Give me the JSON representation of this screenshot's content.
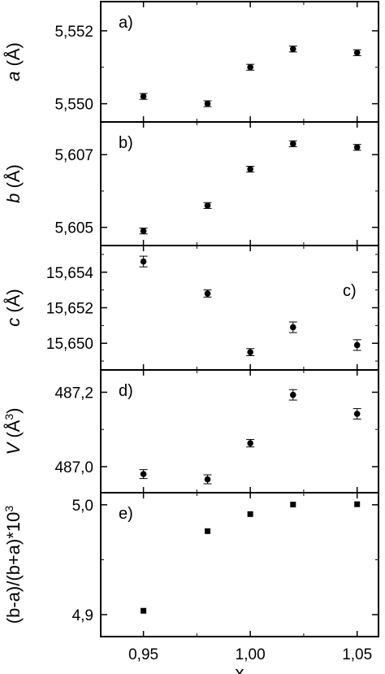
{
  "chart_data": [
    {
      "type": "scatter",
      "panel_label": "a)",
      "ylabel": "a (Å)",
      "ylabel_var": "a",
      "ylabel_unit": " (Å)",
      "xlim": [
        0.93,
        1.06
      ],
      "ylim": [
        5.5495,
        5.5528
      ],
      "yticks": [
        5.55,
        5.552
      ],
      "ytick_labels": [
        "5,550",
        "5,552"
      ],
      "marker": "circle",
      "points": [
        {
          "x": 0.95,
          "y": 5.5502,
          "err": 8e-05
        },
        {
          "x": 0.98,
          "y": 5.55,
          "err": 8e-05
        },
        {
          "x": 1.0,
          "y": 5.551,
          "err": 8e-05
        },
        {
          "x": 1.02,
          "y": 5.5515,
          "err": 8e-05
        },
        {
          "x": 1.05,
          "y": 5.5514,
          "err": 8e-05
        }
      ]
    },
    {
      "type": "scatter",
      "panel_label": "b)",
      "ylabel": "b (Å)",
      "ylabel_var": "b",
      "ylabel_unit": " (Å)",
      "xlim": [
        0.93,
        1.06
      ],
      "ylim": [
        5.6045,
        5.6079
      ],
      "yticks": [
        5.605,
        5.607
      ],
      "ytick_labels": [
        "5,605",
        "5,607"
      ],
      "marker": "circle",
      "points": [
        {
          "x": 0.95,
          "y": 5.6049,
          "err": 8e-05
        },
        {
          "x": 0.98,
          "y": 5.6056,
          "err": 8e-05
        },
        {
          "x": 1.0,
          "y": 5.6066,
          "err": 8e-05
        },
        {
          "x": 1.02,
          "y": 5.6073,
          "err": 8e-05
        },
        {
          "x": 1.05,
          "y": 5.6072,
          "err": 8e-05
        }
      ]
    },
    {
      "type": "scatter",
      "panel_label": "c)",
      "ylabel": "c (Å)",
      "ylabel_var": "c",
      "ylabel_unit": " (Å)",
      "xlim": [
        0.93,
        1.06
      ],
      "ylim": [
        15.6485,
        15.6555
      ],
      "yticks": [
        15.65,
        15.652,
        15.654
      ],
      "ytick_labels": [
        "15,650",
        "15,652",
        "15,654"
      ],
      "marker": "circle",
      "points": [
        {
          "x": 0.95,
          "y": 15.6546,
          "err": 0.0003
        },
        {
          "x": 0.98,
          "y": 15.6528,
          "err": 0.0002
        },
        {
          "x": 1.0,
          "y": 15.6495,
          "err": 0.0002
        },
        {
          "x": 1.02,
          "y": 15.6509,
          "err": 0.0003
        },
        {
          "x": 1.05,
          "y": 15.6499,
          "err": 0.0003
        }
      ]
    },
    {
      "type": "scatter",
      "panel_label": "d)",
      "ylabel": "V (Å³)",
      "ylabel_var": "V",
      "ylabel_unit": " (Å",
      "ylabel_sup": "3",
      "ylabel_close": ")",
      "xlim": [
        0.93,
        1.06
      ],
      "ylim": [
        486.93,
        487.26
      ],
      "yticks": [
        487.0,
        487.2
      ],
      "ytick_labels": [
        "487,0",
        "487,2"
      ],
      "marker": "circle",
      "points": [
        {
          "x": 0.95,
          "y": 486.98,
          "err": 0.012
        },
        {
          "x": 0.98,
          "y": 486.966,
          "err": 0.012
        },
        {
          "x": 1.0,
          "y": 487.063,
          "err": 0.01
        },
        {
          "x": 1.02,
          "y": 487.193,
          "err": 0.014
        },
        {
          "x": 1.05,
          "y": 487.142,
          "err": 0.014
        }
      ]
    },
    {
      "type": "scatter",
      "panel_label": "e)",
      "ylabel": "(b-a)/(b+a)*10³",
      "ylabel_var": "(b-a)/(b+a)*10",
      "ylabel_sup": "3",
      "xlim": [
        0.93,
        1.06
      ],
      "ylim": [
        4.88,
        5.011
      ],
      "yticks": [
        4.9,
        5.0
      ],
      "ytick_labels": [
        "4,9",
        "5,0"
      ],
      "marker": "square",
      "points": [
        {
          "x": 0.95,
          "y": 4.9035
        },
        {
          "x": 0.98,
          "y": 4.976
        },
        {
          "x": 1.0,
          "y": 4.9915
        },
        {
          "x": 1.02,
          "y": 5.0002
        },
        {
          "x": 1.05,
          "y": 5.0005
        }
      ],
      "xticks": [
        0.95,
        1.0,
        1.05
      ],
      "xtick_labels": [
        "0,95",
        "1,00",
        "1,05"
      ],
      "xlabel": "x"
    }
  ]
}
